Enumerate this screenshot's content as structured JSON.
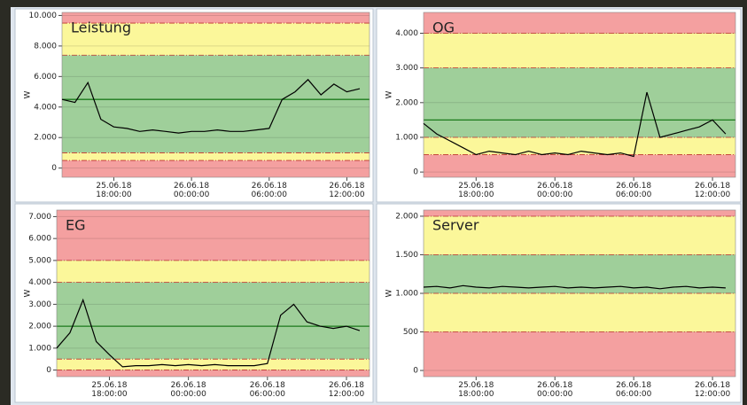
{
  "chart_data": [
    {
      "type": "line",
      "title": "Leistung",
      "y_label": "W",
      "x": [
        "25.06.18 14:00:00",
        "25.06.18 15:00:00",
        "25.06.18 16:00:00",
        "25.06.18 17:00:00",
        "25.06.18 18:00:00",
        "25.06.18 19:00:00",
        "25.06.18 20:00:00",
        "25.06.18 21:00:00",
        "25.06.18 22:00:00",
        "25.06.18 23:00:00",
        "26.06.18 00:00:00",
        "26.06.18 01:00:00",
        "26.06.18 02:00:00",
        "26.06.18 03:00:00",
        "26.06.18 04:00:00",
        "26.06.18 05:00:00",
        "26.06.18 06:00:00",
        "26.06.18 07:00:00",
        "26.06.18 08:00:00",
        "26.06.18 09:00:00",
        "26.06.18 10:00:00",
        "26.06.18 11:00:00",
        "26.06.18 12:00:00",
        "26.06.18 13:00:00"
      ],
      "values": [
        4500,
        4300,
        5600,
        3200,
        2700,
        2600,
        2400,
        2500,
        2400,
        2300,
        2400,
        2400,
        2500,
        2400,
        2400,
        2500,
        2600,
        4500,
        5000,
        5800,
        4800,
        5500,
        5000,
        5200
      ],
      "color": "#000000",
      "xlim": [
        "25.06.18 14:00:00",
        "26.06.18 13:45:00"
      ],
      "xticks": [
        "25.06.18 18:00:00",
        "26.06.18 00:00:00",
        "26.06.18 06:00:00",
        "26.06.18 12:00:00"
      ],
      "ylim": [
        -600,
        10200
      ],
      "yticks": [
        0,
        {
          "value": 2000,
          "label": "2.000"
        },
        {
          "value": 4000,
          "label": "4.000"
        },
        {
          "value": 6000,
          "label": "6.000"
        },
        {
          "value": 8000,
          "label": "8.000"
        },
        {
          "value": 10000,
          "label": "10.000"
        }
      ],
      "thresholds": [
        500,
        1000,
        7400,
        9500
      ],
      "zone_colors": [
        "#f4a0a0",
        "#fbf79a",
        "#9fcf9a",
        "#fbf79a",
        "#f4a0a0"
      ],
      "center_line": 4500,
      "grid": true
    },
    {
      "type": "line",
      "title": "OG",
      "y_label": "W",
      "x": [
        "25.06.18 14:00:00",
        "25.06.18 15:00:00",
        "25.06.18 16:00:00",
        "25.06.18 17:00:00",
        "25.06.18 18:00:00",
        "25.06.18 19:00:00",
        "25.06.18 20:00:00",
        "25.06.18 21:00:00",
        "25.06.18 22:00:00",
        "25.06.18 23:00:00",
        "26.06.18 00:00:00",
        "26.06.18 01:00:00",
        "26.06.18 02:00:00",
        "26.06.18 03:00:00",
        "26.06.18 04:00:00",
        "26.06.18 05:00:00",
        "26.06.18 06:00:00",
        "26.06.18 07:00:00",
        "26.06.18 08:00:00",
        "26.06.18 09:00:00",
        "26.06.18 10:00:00",
        "26.06.18 11:00:00",
        "26.06.18 12:00:00",
        "26.06.18 13:00:00"
      ],
      "values": [
        1400,
        1100,
        900,
        700,
        500,
        600,
        550,
        500,
        600,
        500,
        550,
        500,
        600,
        550,
        500,
        550,
        450,
        2300,
        1000,
        1100,
        1200,
        1300,
        1500,
        1100
      ],
      "color": "#000000",
      "xlim": [
        "25.06.18 14:00:00",
        "26.06.18 13:45:00"
      ],
      "xticks": [
        "25.06.18 18:00:00",
        "26.06.18 00:00:00",
        "26.06.18 06:00:00",
        "26.06.18 12:00:00"
      ],
      "ylim": [
        -150,
        4600
      ],
      "yticks": [
        0,
        {
          "value": 1000,
          "label": "1.000"
        },
        {
          "value": 2000,
          "label": "2.000"
        },
        {
          "value": 3000,
          "label": "3.000"
        },
        {
          "value": 4000,
          "label": "4.000"
        }
      ],
      "thresholds": [
        500,
        1000,
        3000,
        4000
      ],
      "zone_colors": [
        "#f4a0a0",
        "#fbf79a",
        "#9fcf9a",
        "#fbf79a",
        "#f4a0a0"
      ],
      "center_line": 1500,
      "grid": true
    },
    {
      "type": "line",
      "title": "EG",
      "y_label": "W",
      "x": [
        "25.06.18 14:00:00",
        "25.06.18 15:00:00",
        "25.06.18 16:00:00",
        "25.06.18 17:00:00",
        "25.06.18 18:00:00",
        "25.06.18 19:00:00",
        "25.06.18 20:00:00",
        "25.06.18 21:00:00",
        "25.06.18 22:00:00",
        "25.06.18 23:00:00",
        "26.06.18 00:00:00",
        "26.06.18 01:00:00",
        "26.06.18 02:00:00",
        "26.06.18 03:00:00",
        "26.06.18 04:00:00",
        "26.06.18 05:00:00",
        "26.06.18 06:00:00",
        "26.06.18 07:00:00",
        "26.06.18 08:00:00",
        "26.06.18 09:00:00",
        "26.06.18 10:00:00",
        "26.06.18 11:00:00",
        "26.06.18 12:00:00",
        "26.06.18 13:00:00"
      ],
      "values": [
        1000,
        1700,
        3200,
        1300,
        700,
        150,
        200,
        200,
        250,
        200,
        250,
        200,
        250,
        200,
        200,
        200,
        300,
        2500,
        3000,
        2200,
        2000,
        1900,
        2000,
        1800
      ],
      "color": "#000000",
      "xlim": [
        "25.06.18 14:00:00",
        "26.06.18 13:45:00"
      ],
      "xticks": [
        "25.06.18 18:00:00",
        "26.06.18 00:00:00",
        "26.06.18 06:00:00",
        "26.06.18 12:00:00"
      ],
      "ylim": [
        -300,
        7300
      ],
      "yticks": [
        0,
        {
          "value": 1000,
          "label": "1.000"
        },
        {
          "value": 2000,
          "label": "2.000"
        },
        {
          "value": 3000,
          "label": "3.000"
        },
        {
          "value": 4000,
          "label": "4.000"
        },
        {
          "value": 5000,
          "label": "5.000"
        },
        {
          "value": 6000,
          "label": "6.000"
        },
        {
          "value": 7000,
          "label": "7.000"
        }
      ],
      "thresholds": [
        0,
        500,
        4000,
        5000
      ],
      "zone_colors": [
        "#f4a0a0",
        "#fbf79a",
        "#9fcf9a",
        "#fbf79a",
        "#f4a0a0"
      ],
      "center_line": 2000,
      "grid": true
    },
    {
      "type": "line",
      "title": "Server",
      "y_label": "W",
      "x": [
        "25.06.18 14:00:00",
        "25.06.18 15:00:00",
        "25.06.18 16:00:00",
        "25.06.18 17:00:00",
        "25.06.18 18:00:00",
        "25.06.18 19:00:00",
        "25.06.18 20:00:00",
        "25.06.18 21:00:00",
        "25.06.18 22:00:00",
        "25.06.18 23:00:00",
        "26.06.18 00:00:00",
        "26.06.18 01:00:00",
        "26.06.18 02:00:00",
        "26.06.18 03:00:00",
        "26.06.18 04:00:00",
        "26.06.18 05:00:00",
        "26.06.18 06:00:00",
        "26.06.18 07:00:00",
        "26.06.18 08:00:00",
        "26.06.18 09:00:00",
        "26.06.18 10:00:00",
        "26.06.18 11:00:00",
        "26.06.18 12:00:00",
        "26.06.18 13:00:00"
      ],
      "values": [
        1080,
        1090,
        1070,
        1100,
        1080,
        1070,
        1090,
        1080,
        1070,
        1080,
        1090,
        1070,
        1080,
        1070,
        1080,
        1090,
        1070,
        1080,
        1060,
        1080,
        1090,
        1070,
        1080,
        1070
      ],
      "color": "#000000",
      "xlim": [
        "25.06.18 14:00:00",
        "26.06.18 13:45:00"
      ],
      "xticks": [
        "25.06.18 18:00:00",
        "26.06.18 00:00:00",
        "26.06.18 06:00:00",
        "26.06.18 12:00:00"
      ],
      "ylim": [
        -80,
        2080
      ],
      "yticks": [
        0,
        500,
        {
          "value": 1000,
          "label": "1.000"
        },
        {
          "value": 1500,
          "label": "1.500"
        },
        {
          "value": 2000,
          "label": "2.000"
        }
      ],
      "thresholds": [
        500,
        1000,
        1500,
        2000
      ],
      "zone_colors": [
        "#f4a0a0",
        "#fbf79a",
        "#9fcf9a",
        "#fbf79a",
        "#f4a0a0"
      ],
      "grid": true
    }
  ]
}
